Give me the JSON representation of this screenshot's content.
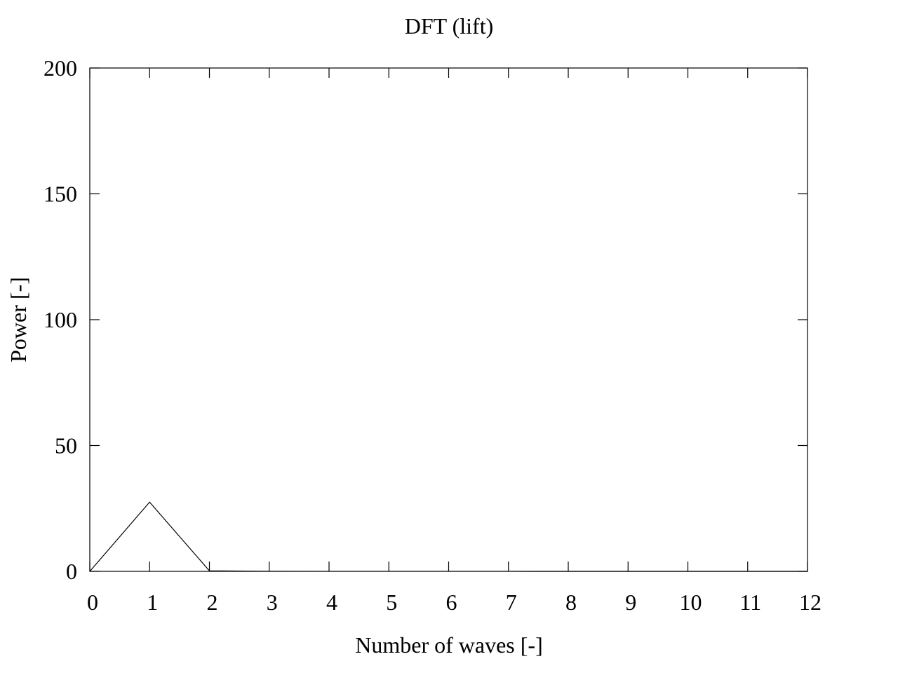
{
  "chart_data": {
    "type": "line",
    "title": "DFT (lift)",
    "xlabel": "Number of waves [-]",
    "ylabel": "Power [-]",
    "xlim": [
      0,
      12
    ],
    "ylim": [
      0,
      200
    ],
    "xticks": [
      0,
      1,
      2,
      3,
      4,
      5,
      6,
      7,
      8,
      9,
      10,
      11,
      12
    ],
    "yticks": [
      0,
      50,
      100,
      150,
      200
    ],
    "grid": false,
    "legend": "none",
    "series": [
      {
        "color": "#000000",
        "x": [
          0,
          1,
          2,
          3,
          4,
          5,
          6,
          7,
          8,
          9,
          10,
          11,
          12
        ],
        "y": [
          0,
          27.5,
          0.2,
          0.05,
          0.02,
          0.01,
          0.01,
          0.01,
          0,
          0,
          0,
          0,
          0
        ]
      }
    ]
  }
}
